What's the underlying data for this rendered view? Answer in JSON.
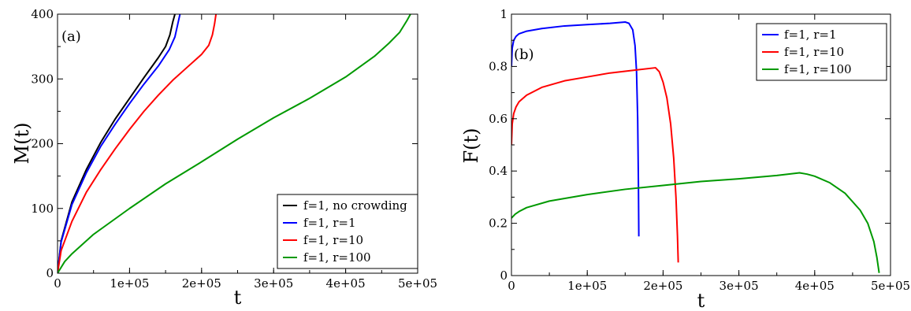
{
  "chart_data": [
    {
      "type": "line",
      "panel_label": "(a)",
      "xlabel": "t",
      "ylabel": "M(t)",
      "xlim": [
        0,
        500000
      ],
      "ylim": [
        0,
        400
      ],
      "x_ticks": [
        0,
        100000,
        200000,
        300000,
        400000,
        500000
      ],
      "x_tick_labels": [
        "0",
        "1e+05",
        "2e+05",
        "3e+05",
        "4e+05",
        "5e+05"
      ],
      "y_ticks": [
        0,
        100,
        200,
        300,
        400
      ],
      "y_tick_labels": [
        "0",
        "100",
        "200",
        "300",
        "400"
      ],
      "grid": false,
      "legend_position": "bottom-right",
      "series": [
        {
          "name": "f=1, no crowding",
          "color": "#000000",
          "x": [
            0,
            5000,
            20000,
            40000,
            60000,
            80000,
            100000,
            120000,
            140000,
            150000,
            156000,
            160000,
            163000
          ],
          "y": [
            0,
            50,
            110,
            160,
            202,
            238,
            270,
            302,
            333,
            350,
            368,
            388,
            400
          ]
        },
        {
          "name": "f=1, r=1",
          "color": "#0000ff",
          "x": [
            0,
            5000,
            20000,
            40000,
            60000,
            80000,
            100000,
            120000,
            140000,
            155000,
            163000,
            167000,
            170000
          ],
          "y": [
            0,
            48,
            106,
            155,
            196,
            230,
            262,
            292,
            320,
            345,
            365,
            385,
            400
          ]
        },
        {
          "name": "f=1, r=10",
          "color": "#ff0000",
          "x": [
            0,
            5000,
            20000,
            40000,
            60000,
            80000,
            100000,
            120000,
            140000,
            160000,
            180000,
            200000,
            210000,
            215000,
            218000,
            220000
          ],
          "y": [
            0,
            35,
            80,
            125,
            160,
            192,
            222,
            250,
            275,
            298,
            318,
            338,
            352,
            368,
            385,
            400
          ]
        },
        {
          "name": "f=1, r=100",
          "color": "#009900",
          "x": [
            0,
            10000,
            20000,
            50000,
            100000,
            150000,
            200000,
            250000,
            300000,
            350000,
            400000,
            440000,
            460000,
            475000,
            485000,
            490000
          ],
          "y": [
            0,
            18,
            30,
            60,
            100,
            138,
            172,
            207,
            240,
            270,
            303,
            335,
            355,
            372,
            390,
            400
          ]
        }
      ]
    },
    {
      "type": "line",
      "panel_label": "(b)",
      "xlabel": "t",
      "ylabel": "F(t)",
      "xlim": [
        0,
        500000
      ],
      "ylim": [
        0,
        1
      ],
      "x_ticks": [
        0,
        100000,
        200000,
        300000,
        400000,
        500000
      ],
      "x_tick_labels": [
        "0",
        "1e+05",
        "2e+05",
        "3e+05",
        "4e+05",
        "5e+05"
      ],
      "y_ticks": [
        0,
        0.2,
        0.4,
        0.6,
        0.8,
        1
      ],
      "y_tick_labels": [
        "0",
        "0.2",
        "0.4",
        "0.6",
        "0.8",
        "1"
      ],
      "grid": false,
      "legend_position": "top-right",
      "series": [
        {
          "name": "f=1, r=1",
          "color": "#0000ff",
          "x": [
            0,
            1000,
            3000,
            6000,
            10000,
            20000,
            40000,
            70000,
            100000,
            130000,
            150000,
            155000,
            160000,
            163000,
            165000,
            166500,
            167500,
            168000
          ],
          "y": [
            0.8,
            0.87,
            0.9,
            0.915,
            0.925,
            0.935,
            0.945,
            0.955,
            0.96,
            0.965,
            0.97,
            0.965,
            0.94,
            0.88,
            0.78,
            0.6,
            0.35,
            0.15
          ]
        },
        {
          "name": "f=1, r=10",
          "color": "#ff0000",
          "x": [
            0,
            1000,
            3000,
            6000,
            10000,
            20000,
            40000,
            70000,
            100000,
            130000,
            160000,
            190000,
            195000,
            200000,
            205000,
            210000,
            214000,
            217000,
            219000,
            220000
          ],
          "y": [
            0.5,
            0.58,
            0.62,
            0.645,
            0.665,
            0.69,
            0.72,
            0.745,
            0.76,
            0.775,
            0.785,
            0.795,
            0.78,
            0.74,
            0.68,
            0.58,
            0.45,
            0.3,
            0.15,
            0.05
          ]
        },
        {
          "name": "f=1, r=100",
          "color": "#009900",
          "x": [
            0,
            5000,
            10000,
            20000,
            50000,
            100000,
            150000,
            200000,
            250000,
            300000,
            350000,
            380000,
            390000,
            400000,
            420000,
            440000,
            460000,
            470000,
            478000,
            482000,
            485000
          ],
          "y": [
            0.22,
            0.235,
            0.245,
            0.26,
            0.285,
            0.31,
            0.33,
            0.345,
            0.36,
            0.37,
            0.383,
            0.393,
            0.388,
            0.38,
            0.355,
            0.315,
            0.25,
            0.2,
            0.13,
            0.07,
            0.01
          ]
        }
      ]
    }
  ]
}
